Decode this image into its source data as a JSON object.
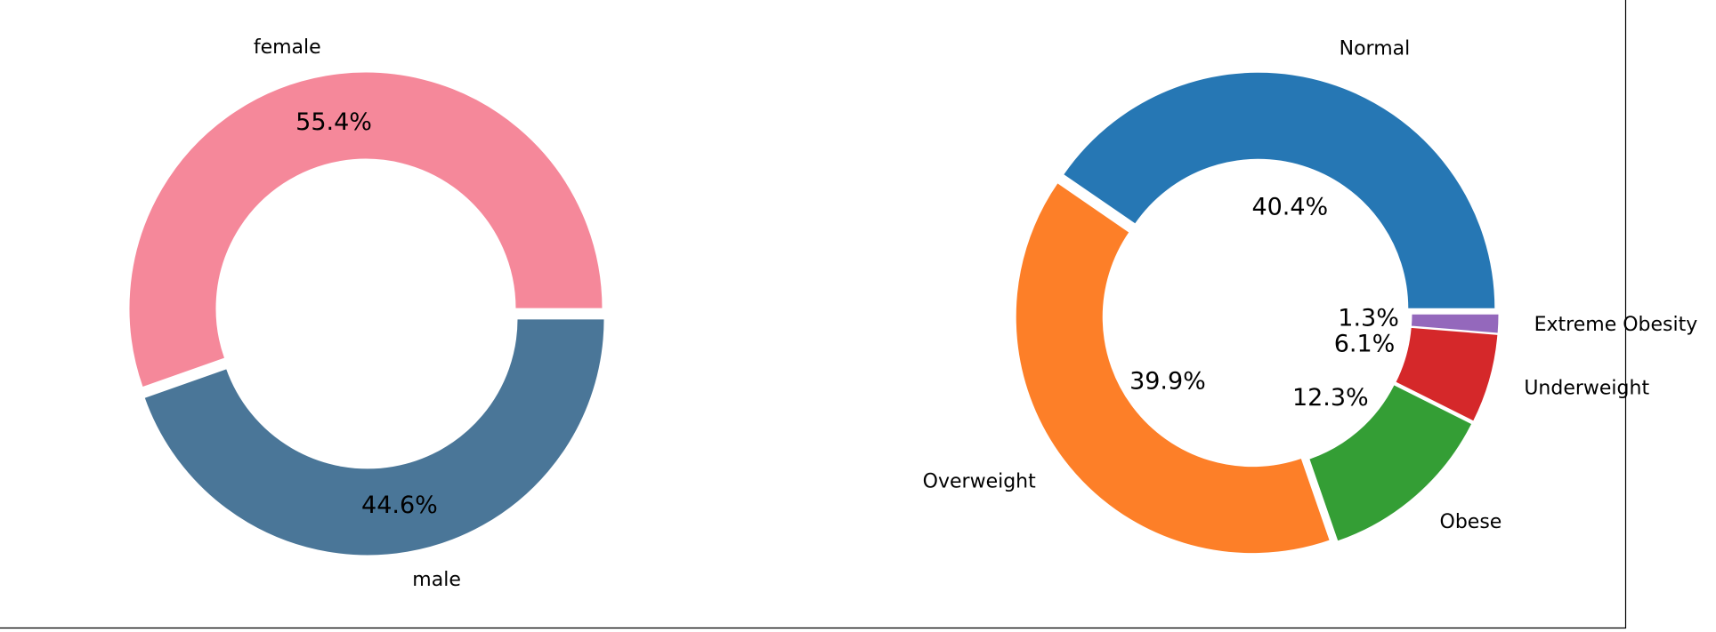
{
  "chart_data": [
    {
      "type": "pie",
      "donut": true,
      "title": "",
      "start_angle_deg": 0,
      "direction": "counterclockwise",
      "slices": [
        {
          "label": "female",
          "percent": 55.4,
          "pct_text": "55.4%",
          "color": "#f5889a"
        },
        {
          "label": "male",
          "percent": 44.6,
          "pct_text": "44.6%",
          "color": "#4a7698"
        }
      ]
    },
    {
      "type": "pie",
      "donut": true,
      "title": "",
      "start_angle_deg": 0,
      "direction": "counterclockwise",
      "slices": [
        {
          "label": "Normal",
          "percent": 40.4,
          "pct_text": "40.4%",
          "color": "#2677b4"
        },
        {
          "label": "Overweight",
          "percent": 39.9,
          "pct_text": "39.9%",
          "color": "#fd7f28"
        },
        {
          "label": "Obese",
          "percent": 12.3,
          "pct_text": "12.3%",
          "color": "#349e35"
        },
        {
          "label": "Underweight",
          "percent": 6.1,
          "pct_text": "6.1%",
          "color": "#d5282a"
        },
        {
          "label": "Extreme Obesity",
          "percent": 1.3,
          "pct_text": "1.3%",
          "color": "#9468bc"
        }
      ]
    }
  ]
}
